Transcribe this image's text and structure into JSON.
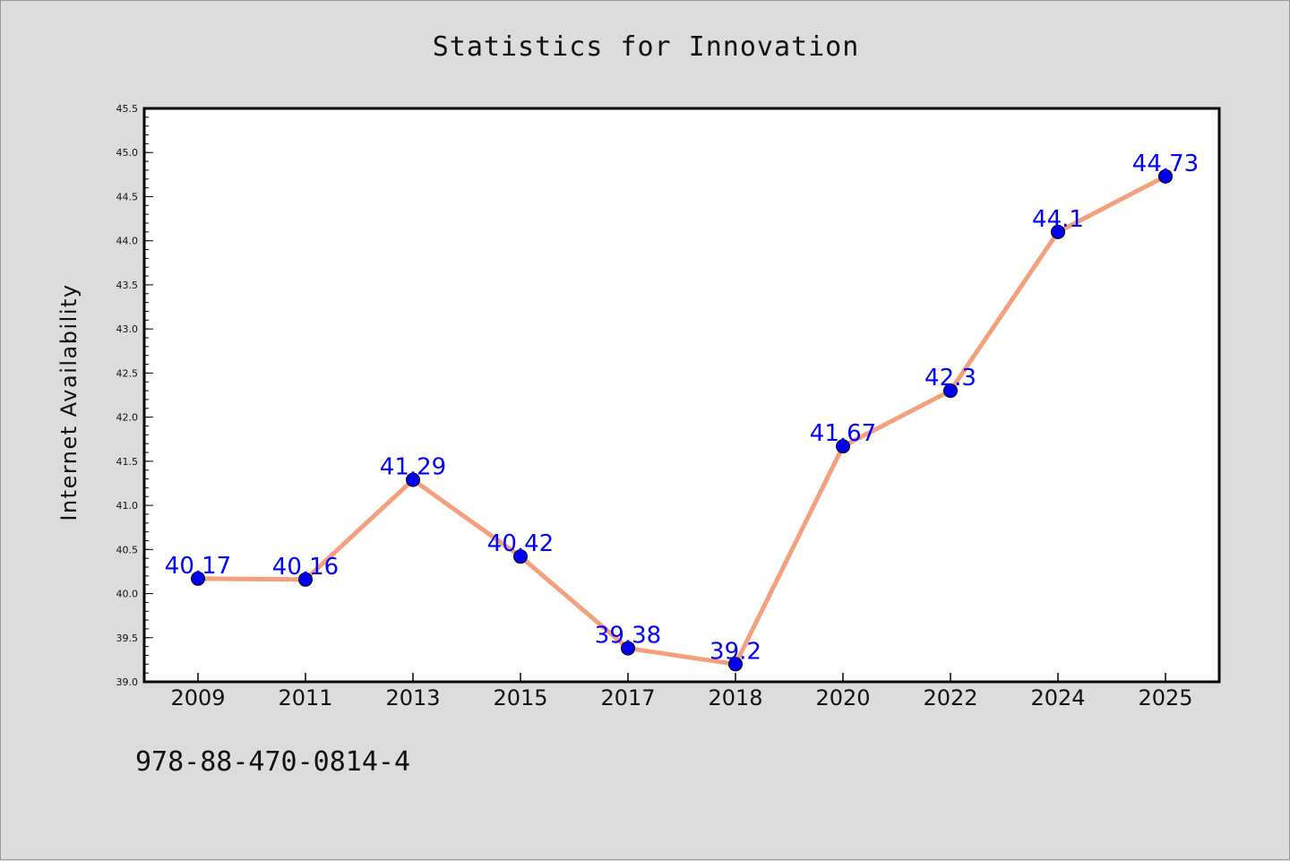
{
  "chart_data": {
    "type": "line",
    "title": "Statistics for Innovation",
    "xlabel": "",
    "ylabel": "Internet Availability",
    "categories": [
      "2009",
      "2011",
      "2013",
      "2015",
      "2017",
      "2018",
      "2020",
      "2022",
      "2024",
      "2025"
    ],
    "series": [
      {
        "values": [
          40.17,
          40.16,
          41.29,
          40.42,
          39.38,
          39.2,
          41.67,
          42.3,
          44.1,
          44.73
        ],
        "data_labels": [
          "40.17",
          "40.16",
          "41.29",
          "40.42",
          "39.38",
          "39.2",
          "41.67",
          "42.3",
          "44.1",
          "44.73"
        ]
      }
    ],
    "ylim": [
      39.0,
      45.5
    ],
    "y_ticks": [
      "39.0",
      "39.5",
      "40.0",
      "40.5",
      "41.0",
      "41.5",
      "42.0",
      "42.5",
      "43.0",
      "43.5",
      "44.0",
      "44.5",
      "45.0",
      "45.5"
    ],
    "grid": false,
    "legend": "none",
    "colors": {
      "line": "#f4a07c",
      "marker": "#0000ee",
      "data_label": "#0000ff",
      "background": "#dcdcdc",
      "plot_area": "#ffffff"
    }
  },
  "footer": {
    "code": "978-88-470-0814-4"
  }
}
